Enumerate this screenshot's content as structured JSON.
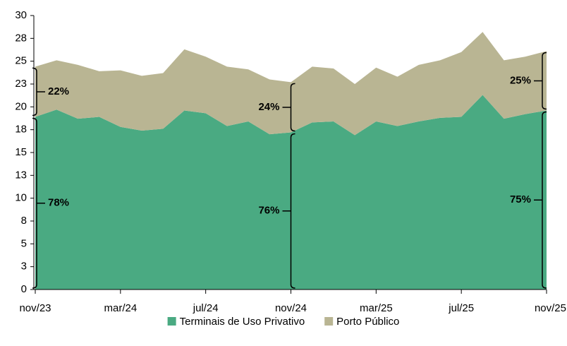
{
  "chart_data": {
    "type": "stacked_area",
    "categories": [
      "nov/23",
      null,
      null,
      null,
      "mar/24",
      null,
      null,
      null,
      "jul/24",
      null,
      null,
      null,
      "nov/24",
      null,
      null,
      null,
      "mar/25",
      null,
      null,
      null,
      "jul/25",
      null,
      null,
      null,
      "nov/25"
    ],
    "series": [
      {
        "name": "Terminais de Uso Privativo",
        "color": "#4aaa82",
        "values": [
          18.9,
          19.7,
          18.7,
          18.9,
          17.8,
          17.4,
          17.6,
          19.6,
          19.3,
          17.9,
          18.4,
          17.0,
          17.2,
          18.3,
          18.4,
          16.9,
          18.4,
          17.9,
          18.4,
          18.8,
          18.9,
          21.3,
          18.7,
          19.2,
          19.6
        ]
      },
      {
        "name": "Porto Público",
        "color": "#b9b593",
        "values": [
          5.5,
          5.4,
          5.9,
          5.0,
          6.2,
          6.0,
          6.1,
          6.7,
          6.2,
          6.5,
          5.7,
          6.0,
          5.5,
          6.1,
          5.8,
          5.6,
          5.9,
          5.4,
          6.2,
          6.3,
          7.1,
          6.9,
          6.4,
          6.3,
          6.5
        ]
      }
    ],
    "ylim": [
      0,
      30
    ],
    "yticks": [
      0,
      {
        "value": 2.5,
        "label": "3"
      },
      5,
      {
        "value": 7.5,
        "label": "8"
      },
      10,
      {
        "value": 12.5,
        "label": "13"
      },
      15,
      {
        "value": 17.5,
        "label": "18"
      },
      20,
      {
        "value": 22.5,
        "label": "23"
      },
      25,
      {
        "value": 27.5,
        "label": "28"
      },
      30
    ],
    "annotations": [
      [
        "78%",
        "22%"
      ],
      [
        "76%",
        "24%"
      ],
      [
        "75%",
        "25%"
      ]
    ]
  }
}
